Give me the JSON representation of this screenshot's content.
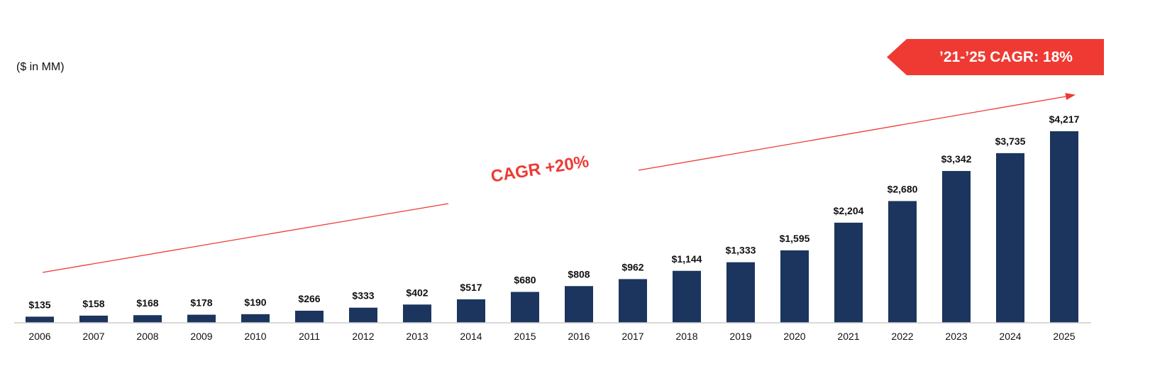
{
  "chart_data": {
    "type": "bar",
    "title": "",
    "unit_label": "($ in MM)",
    "categories": [
      "2006",
      "2007",
      "2008",
      "2009",
      "2010",
      "2011",
      "2012",
      "2013",
      "2014",
      "2015",
      "2016",
      "2017",
      "2018",
      "2019",
      "2020",
      "2021",
      "2022",
      "2023",
      "2024",
      "2025"
    ],
    "values": [
      135,
      158,
      168,
      178,
      190,
      266,
      333,
      402,
      517,
      680,
      808,
      962,
      1144,
      1333,
      1595,
      2204,
      2680,
      3342,
      3735,
      4217
    ],
    "data_labels": [
      "$135",
      "$158",
      "$168",
      "$178",
      "$190",
      "$266",
      "$333",
      "$402",
      "$517",
      "$680",
      "$808",
      "$962",
      "$1,144",
      "$1,333",
      "$1,595",
      "$2,204",
      "$2,680",
      "$3,342",
      "$3,735",
      "$4,217"
    ],
    "xlabel": "",
    "ylabel": "",
    "ylim": [
      0,
      4217
    ],
    "grid": false,
    "legend": false,
    "annotations": {
      "trend_label": "CAGR +20%",
      "badge_label": "’21-’25 CAGR: 18%"
    },
    "colors": {
      "bar": "#1c355e",
      "accent": "#ee3a33",
      "axis": "#cccccc"
    }
  }
}
